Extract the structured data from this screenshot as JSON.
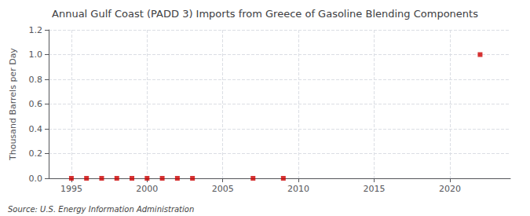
{
  "chart_data": {
    "type": "scatter",
    "title": "Annual Gulf Coast (PADD 3) Imports from Greece of Gasoline Blending Components",
    "ylabel": "Thousand Barrels per Day",
    "annotations": [
      "Source: U.S. Energy Information Administration"
    ],
    "x": [
      1995,
      1996,
      1997,
      1998,
      1999,
      2000,
      2001,
      2002,
      2003,
      2007,
      2009,
      2022
    ],
    "values": [
      0.0,
      0.0,
      0.0,
      0.0,
      0.0,
      0.0,
      0.0,
      0.0,
      0.0,
      0.0,
      0.0,
      1.0
    ],
    "color": "#cc0000",
    "marker": "square",
    "xlim": [
      1993.5,
      2024
    ],
    "xticks": [
      1995,
      2000,
      2005,
      2010,
      2015,
      2020
    ],
    "ylim": [
      0,
      1.2
    ],
    "yticks": [
      {
        "value": 0,
        "label": "0.0"
      },
      0.2,
      0.4,
      0.6,
      0.8,
      {
        "value": 1,
        "label": "1.0"
      },
      1.2
    ],
    "grid": true
  }
}
